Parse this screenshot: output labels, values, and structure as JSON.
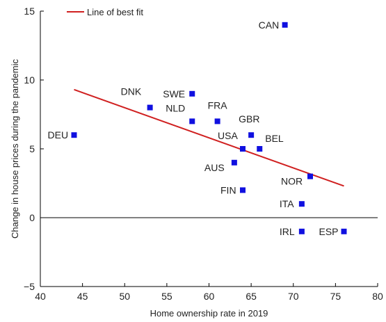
{
  "chart_data": {
    "type": "scatter",
    "xlabel": "Home ownership rate in 2019",
    "ylabel": "Change in house prices during the pandemic",
    "xlim": [
      40,
      80
    ],
    "ylim": [
      -5,
      15
    ],
    "x_ticks": [
      40,
      45,
      50,
      55,
      60,
      65,
      70,
      75,
      80
    ],
    "y_ticks": [
      -5,
      0,
      5,
      10,
      15
    ],
    "y_tick_labels": [
      "−5",
      "0",
      "5",
      "10",
      "15"
    ],
    "zero_line": true,
    "grid": false,
    "legend": {
      "position": "top-left",
      "entries": [
        {
          "label": "Line of best fit",
          "color": "#d02020"
        }
      ]
    },
    "marker_color": "#1010e0",
    "points": [
      {
        "label": "CAN",
        "x": 69,
        "y": 14
      },
      {
        "label": "DNK",
        "x": 53,
        "y": 8
      },
      {
        "label": "SWE",
        "x": 58,
        "y": 9
      },
      {
        "label": "NLD",
        "x": 58,
        "y": 7
      },
      {
        "label": "FRA",
        "x": 61,
        "y": 7
      },
      {
        "label": "GBR",
        "x": 65,
        "y": 6
      },
      {
        "label": "DEU",
        "x": 44,
        "y": 6
      },
      {
        "label": "USA",
        "x": 64,
        "y": 5
      },
      {
        "label": "BEL",
        "x": 66,
        "y": 5
      },
      {
        "label": "AUS",
        "x": 63,
        "y": 4
      },
      {
        "label": "NOR",
        "x": 72,
        "y": 3
      },
      {
        "label": "FIN",
        "x": 64,
        "y": 2
      },
      {
        "label": "ITA",
        "x": 71,
        "y": 1
      },
      {
        "label": "IRL",
        "x": 71,
        "y": -1
      },
      {
        "label": "ESP",
        "x": 76,
        "y": -1
      }
    ],
    "fit_line": {
      "x": [
        44,
        76
      ],
      "y": [
        9.3,
        2.3
      ]
    }
  }
}
